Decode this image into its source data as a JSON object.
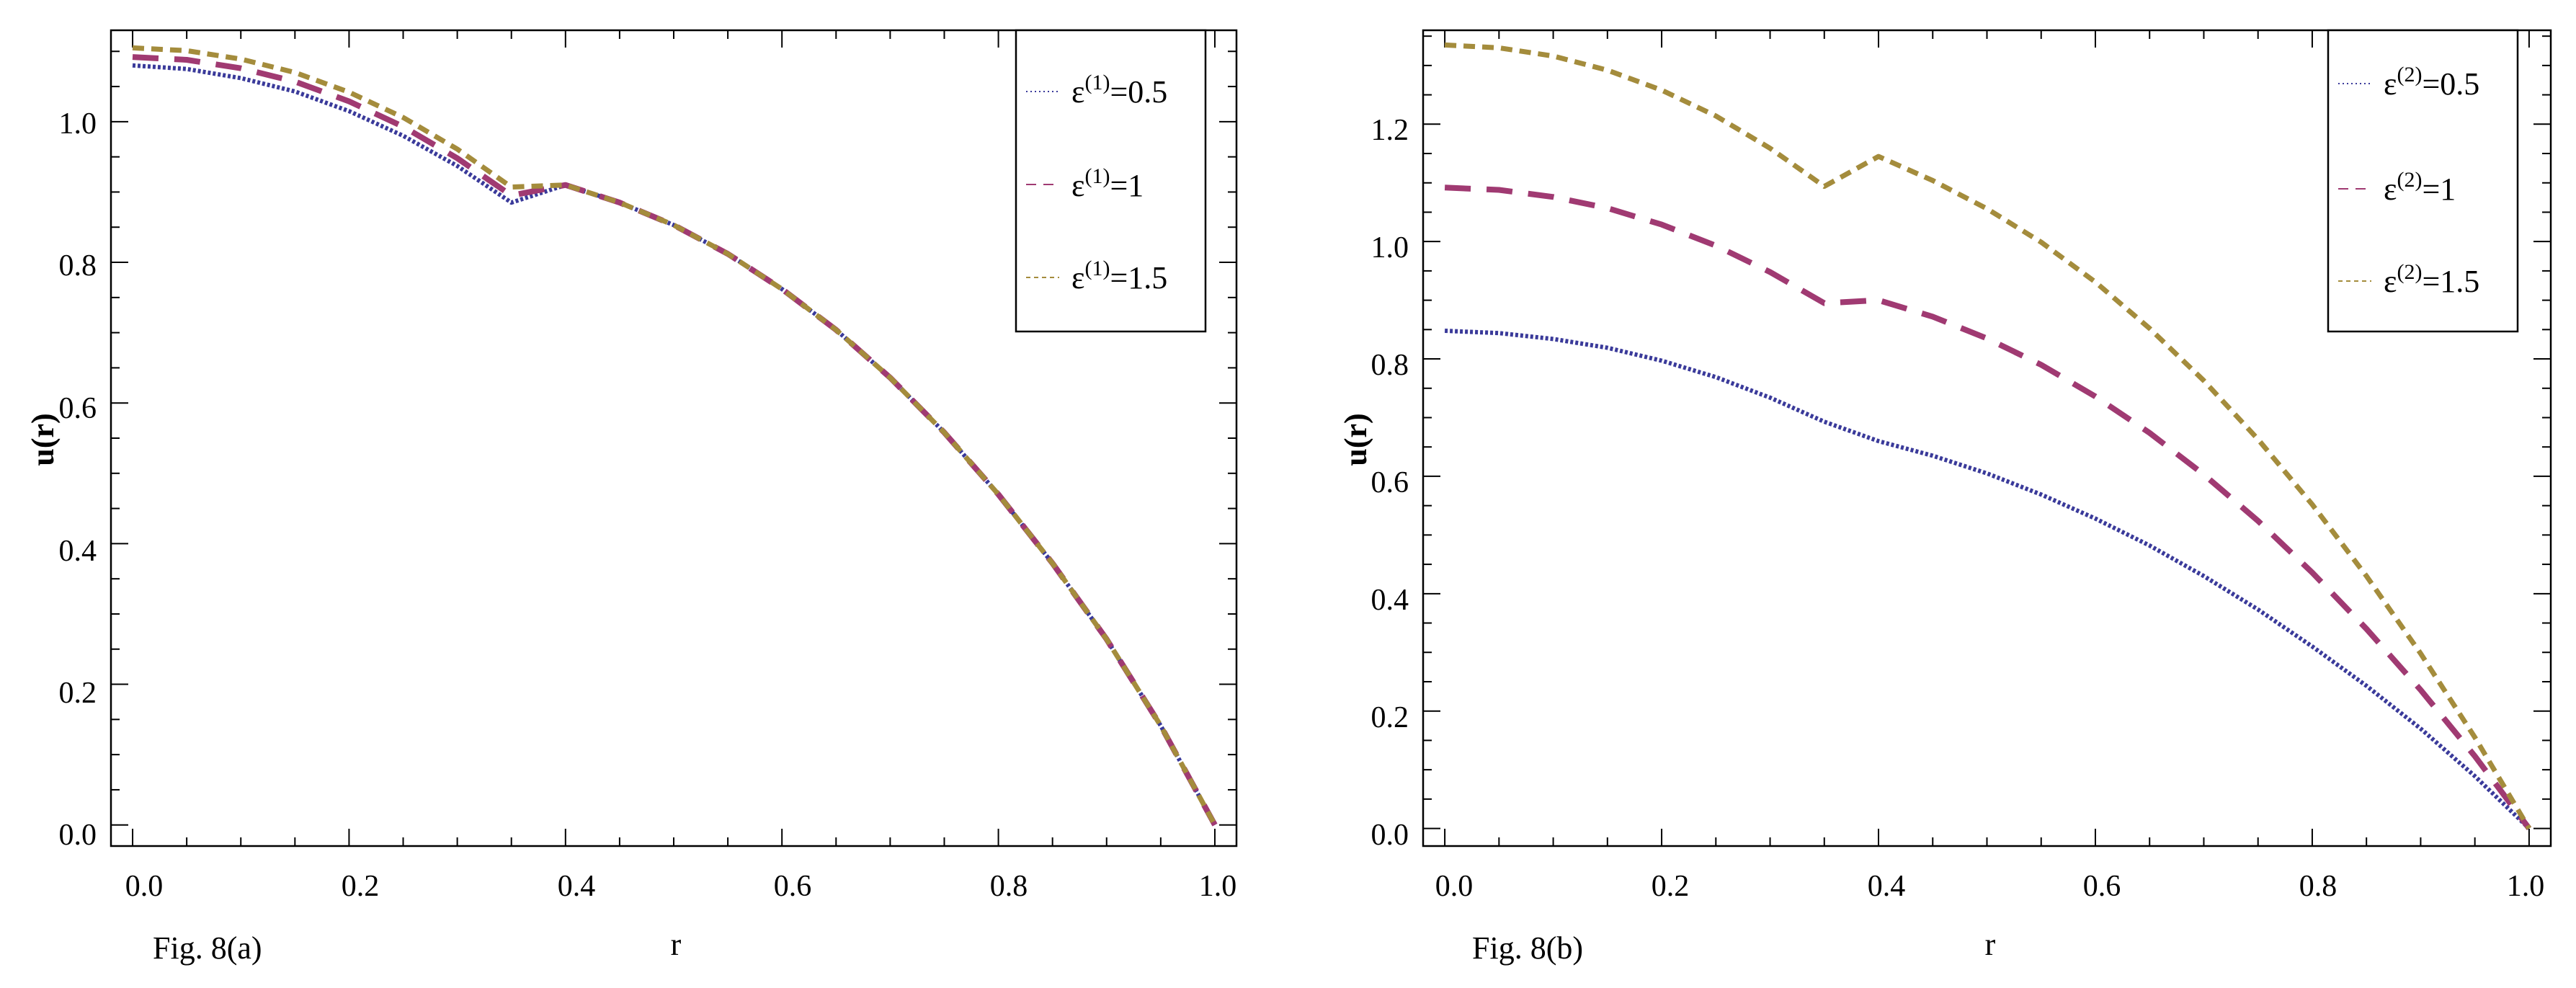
{
  "chart_data": [
    {
      "type": "line",
      "caption": "Fig. 8(a)",
      "xlabel": "r",
      "ylabel": "u(r)",
      "xlim": [
        -0.02,
        1.02
      ],
      "ylim": [
        -0.03,
        1.13
      ],
      "xticks": [
        0.0,
        0.2,
        0.4,
        0.6,
        0.8,
        1.0
      ],
      "xtick_labels": [
        "0.0",
        "0.2",
        "0.4",
        "0.6",
        "0.8",
        "1.0"
      ],
      "yticks": [
        0.0,
        0.2,
        0.4,
        0.6,
        0.8,
        1.0
      ],
      "ytick_labels": [
        "0.0",
        "0.2",
        "0.4",
        "0.6",
        "0.8",
        "1.0"
      ],
      "legend_position": "top-right",
      "series": [
        {
          "name": "ε(1)=0.5",
          "legend_base": "ε",
          "legend_sup": "(1)",
          "legend_value": "=0.5",
          "color": "#3a3a9a",
          "style": "dotted",
          "x": [
            0,
            0.05,
            0.1,
            0.15,
            0.2,
            0.25,
            0.3,
            0.35,
            0.4,
            0.45,
            0.5,
            0.55,
            0.6,
            0.65,
            0.7,
            0.75,
            0.8,
            0.85,
            0.9,
            0.95,
            1.0
          ],
          "y": [
            1.08,
            1.075,
            1.062,
            1.043,
            1.015,
            0.98,
            0.937,
            0.885,
            0.91,
            0.885,
            0.853,
            0.812,
            0.762,
            0.704,
            0.636,
            0.558,
            0.47,
            0.372,
            0.264,
            0.141,
            0.0
          ]
        },
        {
          "name": "ε(1)=1",
          "legend_base": "ε",
          "legend_sup": "(1)",
          "legend_value": "=1",
          "color": "#a03a72",
          "style": "dashed",
          "x": [
            0,
            0.05,
            0.1,
            0.15,
            0.2,
            0.25,
            0.3,
            0.35,
            0.4,
            0.45,
            0.5,
            0.55,
            0.6,
            0.65,
            0.7,
            0.75,
            0.8,
            0.85,
            0.9,
            0.95,
            1.0
          ],
          "y": [
            1.092,
            1.088,
            1.076,
            1.057,
            1.029,
            0.993,
            0.948,
            0.895,
            0.91,
            0.885,
            0.853,
            0.812,
            0.762,
            0.704,
            0.636,
            0.558,
            0.47,
            0.372,
            0.264,
            0.141,
            0.0
          ]
        },
        {
          "name": "ε(1)=1.5",
          "legend_base": "ε",
          "legend_sup": "(1)",
          "legend_value": "=1.5",
          "color": "#a48c3c",
          "style": "longdash",
          "x": [
            0,
            0.05,
            0.1,
            0.15,
            0.2,
            0.25,
            0.3,
            0.35,
            0.4,
            0.45,
            0.5,
            0.55,
            0.6,
            0.65,
            0.7,
            0.75,
            0.8,
            0.85,
            0.9,
            0.95,
            1.0
          ],
          "y": [
            1.105,
            1.101,
            1.089,
            1.07,
            1.042,
            1.006,
            0.961,
            0.907,
            0.91,
            0.885,
            0.853,
            0.812,
            0.762,
            0.704,
            0.636,
            0.558,
            0.47,
            0.372,
            0.264,
            0.141,
            0.0
          ]
        }
      ]
    },
    {
      "type": "line",
      "caption": "Fig. 8(b)",
      "xlabel": "r",
      "ylabel": "u(r)",
      "xlim": [
        -0.02,
        1.02
      ],
      "ylim": [
        -0.03,
        1.36
      ],
      "xticks": [
        0.0,
        0.2,
        0.4,
        0.6,
        0.8,
        1.0
      ],
      "xtick_labels": [
        "0.0",
        "0.2",
        "0.4",
        "0.6",
        "0.8",
        "1.0"
      ],
      "yticks": [
        0.0,
        0.2,
        0.4,
        0.6,
        0.8,
        1.0,
        1.2
      ],
      "ytick_labels": [
        "0.0",
        "0.2",
        "0.4",
        "0.6",
        "0.8",
        "1.0",
        "1.2"
      ],
      "legend_position": "top-right",
      "series": [
        {
          "name": "ε(2)=0.5",
          "legend_base": "ε",
          "legend_sup": "(2)",
          "legend_value": "=0.5",
          "color": "#3a3a9a",
          "style": "dotted",
          "x": [
            0,
            0.05,
            0.1,
            0.15,
            0.2,
            0.25,
            0.3,
            0.35,
            0.4,
            0.45,
            0.5,
            0.55,
            0.6,
            0.65,
            0.7,
            0.75,
            0.8,
            0.85,
            0.9,
            0.95,
            1.0
          ],
          "y": [
            0.848,
            0.844,
            0.834,
            0.819,
            0.797,
            0.769,
            0.734,
            0.693,
            0.66,
            0.635,
            0.605,
            0.569,
            0.528,
            0.482,
            0.43,
            0.373,
            0.31,
            0.243,
            0.17,
            0.089,
            0.0
          ]
        },
        {
          "name": "ε(2)=1",
          "legend_base": "ε",
          "legend_sup": "(2)",
          "legend_value": "=1",
          "color": "#a03a72",
          "style": "dashed",
          "x": [
            0,
            0.05,
            0.1,
            0.15,
            0.2,
            0.25,
            0.3,
            0.35,
            0.4,
            0.45,
            0.5,
            0.55,
            0.6,
            0.65,
            0.7,
            0.75,
            0.8,
            0.85,
            0.9,
            0.95,
            1.0
          ],
          "y": [
            1.092,
            1.088,
            1.076,
            1.057,
            1.029,
            0.993,
            0.948,
            0.895,
            0.9,
            0.872,
            0.835,
            0.79,
            0.736,
            0.674,
            0.603,
            0.524,
            0.436,
            0.34,
            0.236,
            0.123,
            0.0
          ]
        },
        {
          "name": "ε(2)=1.5",
          "legend_base": "ε",
          "legend_sup": "(2)",
          "legend_value": "=1.5",
          "color": "#a48c3c",
          "style": "longdash",
          "x": [
            0,
            0.05,
            0.1,
            0.15,
            0.2,
            0.25,
            0.3,
            0.35,
            0.4,
            0.45,
            0.5,
            0.55,
            0.6,
            0.65,
            0.7,
            0.75,
            0.8,
            0.85,
            0.9,
            0.95,
            1.0
          ],
          "y": [
            1.335,
            1.33,
            1.316,
            1.292,
            1.258,
            1.214,
            1.159,
            1.094,
            1.145,
            1.104,
            1.056,
            0.999,
            0.931,
            0.852,
            0.763,
            0.663,
            0.552,
            0.43,
            0.298,
            0.155,
            0.0
          ]
        }
      ]
    }
  ]
}
